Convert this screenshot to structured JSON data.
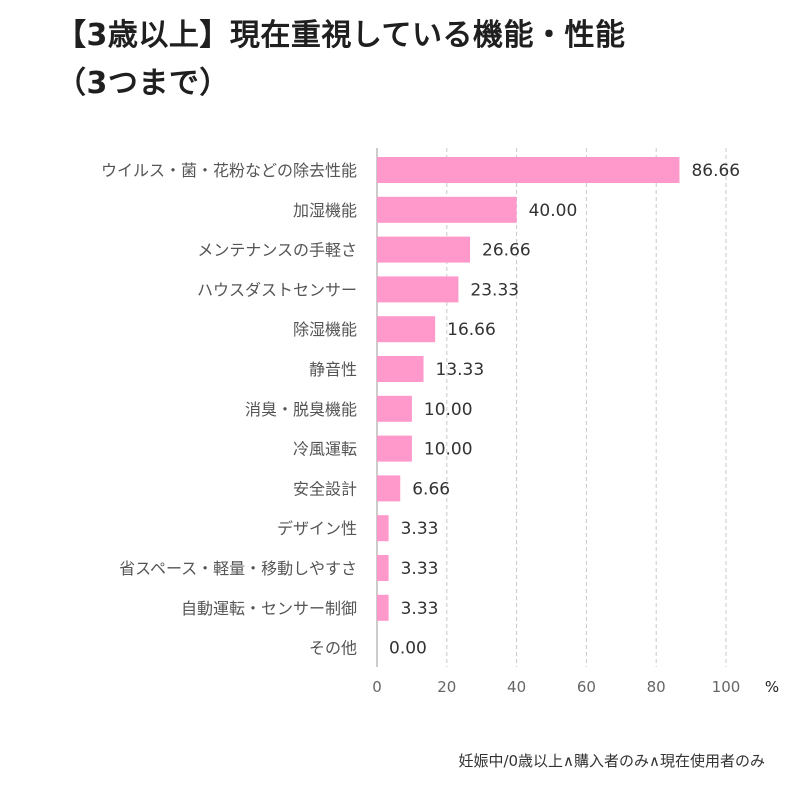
{
  "chart_data": {
    "type": "bar",
    "orientation": "horizontal",
    "title_lines": [
      "【3歳以上】現在重視している機能・性能",
      "（3つまで）"
    ],
    "categories": [
      "ウイルス・菌・花粉などの除去性能",
      "加湿機能",
      "メンテナンスの手軽さ",
      "ハウスダストセンサー",
      "除湿機能",
      "静音性",
      "消臭・脱臭機能",
      "冷風運転",
      "安全設計",
      "デザイン性",
      "省スペース・軽量・移動しやすさ",
      "自動運転・センサー制御",
      "その他"
    ],
    "values": [
      86.66,
      40.0,
      26.66,
      23.33,
      16.66,
      13.33,
      10.0,
      10.0,
      6.66,
      3.33,
      3.33,
      3.33,
      0.0
    ],
    "value_labels": [
      "86.66",
      "40.00",
      "26.66",
      "23.33",
      "16.66",
      "13.33",
      "10.00",
      "10.00",
      "6.66",
      "3.33",
      "3.33",
      "3.33",
      "0.00"
    ],
    "xlim": [
      0,
      100
    ],
    "xticks": [
      "0",
      "20",
      "40",
      "60",
      "80",
      "100"
    ],
    "xunit": "%",
    "grid": "vertical-dashed",
    "bar_color": "#ff99cc",
    "footnote": "妊娠中/0歳以上∧購入者のみ∧現在使用者のみ"
  },
  "colors": {
    "bar": "#ff99cc",
    "grid": "#c8c8c8",
    "axis": "#999999",
    "label": "#555555",
    "value": "#333333",
    "tick": "#666666"
  }
}
